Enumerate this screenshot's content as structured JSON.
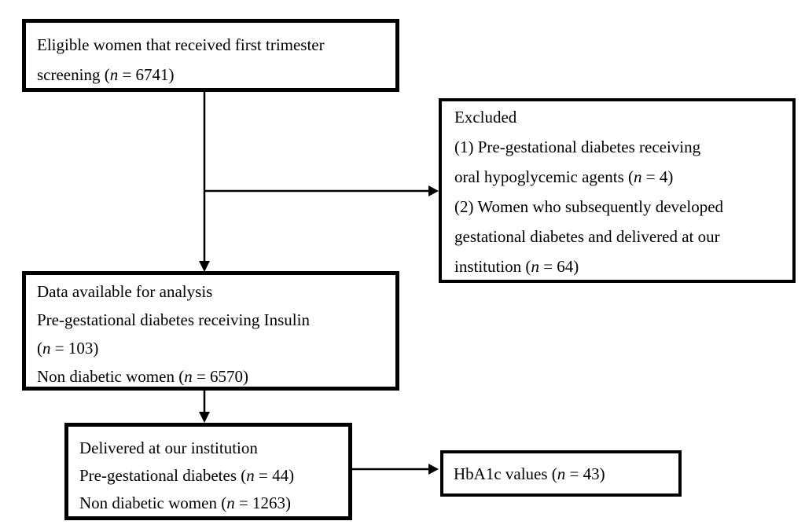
{
  "diagram": {
    "kind": "study-flowchart",
    "text_color": "#000000",
    "background_color": "#ffffff",
    "border_color": "#000000"
  },
  "boxes": {
    "eligible": {
      "lines": [
        [
          {
            "t": "Eligible women that received first trimester"
          }
        ],
        [
          {
            "t": "screening ("
          },
          {
            "t": "n",
            "i": true
          },
          {
            "t": " = 6741)"
          }
        ]
      ]
    },
    "excluded": {
      "lines": [
        [
          {
            "t": "Excluded"
          }
        ],
        [
          {
            "t": "(1) Pre-gestational diabetes receiving"
          }
        ],
        [
          {
            "t": "oral hypoglycemic agents ("
          },
          {
            "t": "n",
            "i": true
          },
          {
            "t": " = 4)"
          }
        ],
        [
          {
            "t": "(2) Women who subsequently developed"
          }
        ],
        [
          {
            "t": "gestational diabetes and delivered at our"
          }
        ],
        [
          {
            "t": "institution ("
          },
          {
            "t": "n",
            "i": true
          },
          {
            "t": " = 64)"
          }
        ]
      ]
    },
    "analysis": {
      "lines": [
        [
          {
            "t": "Data available for analysis"
          }
        ],
        [
          {
            "t": "Pre-gestational diabetes receiving Insulin"
          }
        ],
        [
          {
            "t": "("
          },
          {
            "t": "n",
            "i": true
          },
          {
            "t": " = 103)"
          }
        ],
        [
          {
            "t": "Non diabetic women ("
          },
          {
            "t": "n",
            "i": true
          },
          {
            "t": " = 6570)"
          }
        ]
      ]
    },
    "delivered": {
      "lines": [
        [
          {
            "t": "Delivered at our institution"
          }
        ],
        [
          {
            "t": "Pre-gestational diabetes ("
          },
          {
            "t": "n",
            "i": true
          },
          {
            "t": " = 44)"
          }
        ],
        [
          {
            "t": "Non diabetic women ("
          },
          {
            "t": "n",
            "i": true
          },
          {
            "t": " = 1263)"
          }
        ]
      ]
    },
    "hba1c": {
      "lines": [
        [
          {
            "t": "HbA1c values ("
          },
          {
            "t": "n",
            "i": true
          },
          {
            "t": " = 43)"
          }
        ]
      ]
    }
  }
}
